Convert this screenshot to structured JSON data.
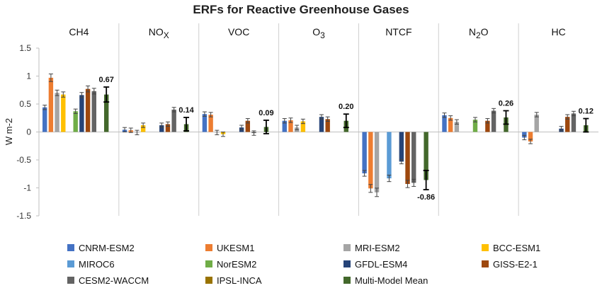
{
  "chart_data": {
    "type": "bar",
    "title": "ERFs for Reactive Greenhouse Gases",
    "ylabel": "W m-2",
    "ylim": [
      -1.5,
      1.5
    ],
    "yticks": [
      "1.5",
      "1",
      "0.5",
      "0",
      "-0.5",
      "-1",
      "-1.5"
    ],
    "ytick_values": [
      1.5,
      1,
      0.5,
      0,
      -0.5,
      -1,
      -1.5
    ],
    "categories": [
      "CH4",
      "NOx",
      "VOC",
      "O3",
      "NTCF",
      "N2O",
      "HC"
    ],
    "category_labels": [
      {
        "main": "CH4",
        "sub": ""
      },
      {
        "main": "NO",
        "sub": "X"
      },
      {
        "main": "VOC",
        "sub": ""
      },
      {
        "main": "O",
        "sub": "3"
      },
      {
        "main": "NTCF",
        "sub": ""
      },
      {
        "main": "N",
        "sub": "2",
        "rest": "O"
      },
      {
        "main": "HC",
        "sub": ""
      }
    ],
    "colors": {
      "CNRM-ESM2": "#4472c4",
      "UKESM1": "#ed7d31",
      "MRI-ESM2": "#a5a5a5",
      "BCC-ESM1": "#ffc000",
      "MIROC6": "#5b9bd5",
      "NorESM2": "#70ad47",
      "GFDL-ESM4": "#264478",
      "GISS-E2-1": "#9e480e",
      "CESM2-WACCM": "#636363",
      "IPSL-INCA": "#997300",
      "Multi-Model Mean": "#43682b"
    },
    "series": [
      {
        "name": "CNRM-ESM2",
        "values": [
          0.44,
          0.04,
          0.32,
          0.2,
          -0.74,
          0.3,
          -0.1
        ]
      },
      {
        "name": "UKESM1",
        "values": [
          0.97,
          0.03,
          0.31,
          0.21,
          -1.01,
          0.25,
          -0.17
        ]
      },
      {
        "name": "MRI-ESM2",
        "values": [
          0.7,
          -0.01,
          -0.01,
          0.08,
          -1.08,
          0.18,
          0.31
        ]
      },
      {
        "name": "BCC-ESM1",
        "values": [
          0.67,
          0.12,
          -0.04,
          0.19,
          null,
          null,
          null
        ]
      },
      {
        "name": "MIROC6",
        "values": [
          null,
          null,
          null,
          null,
          -0.83,
          null,
          null
        ]
      },
      {
        "name": "NorESM2",
        "values": [
          0.37,
          null,
          null,
          null,
          null,
          0.22,
          null
        ]
      },
      {
        "name": "GFDL-ESM4",
        "values": [
          0.66,
          0.12,
          0.08,
          0.27,
          -0.53,
          null,
          0.06
        ]
      },
      {
        "name": "GISS-E2-1",
        "values": [
          0.77,
          0.14,
          0.2,
          0.23,
          -0.93,
          0.2,
          0.27
        ]
      },
      {
        "name": "CESM2-WACCM",
        "values": [
          0.73,
          0.4,
          -0.02,
          null,
          -0.91,
          0.38,
          0.33
        ]
      },
      {
        "name": "IPSL-INCA",
        "values": [
          null,
          null,
          null,
          null,
          null,
          null,
          null
        ]
      },
      {
        "name": "Multi-Model Mean",
        "values": [
          0.67,
          0.14,
          0.09,
          0.2,
          -0.86,
          0.26,
          0.12
        ]
      }
    ],
    "mean_labels": [
      "0.67",
      "0.14",
      "0.09",
      "0.20",
      "-0.86",
      "0.26",
      "0.12"
    ],
    "grid": false,
    "legend_position": "bottom"
  }
}
